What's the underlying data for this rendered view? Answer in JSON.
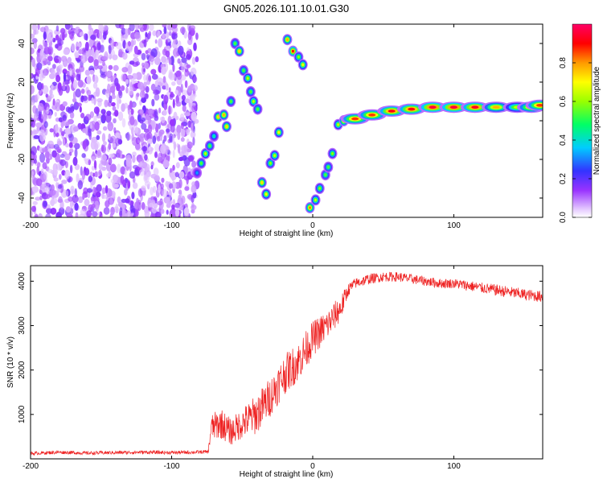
{
  "title": "GN05.2026.101.10.01.G30",
  "chart_data": [
    {
      "type": "heatmap",
      "title": "GN05.2026.101.10.01.G30",
      "xlabel": "Height of straight line (km)",
      "ylabel": "Frequency (Hz)",
      "xlim": [
        -200,
        163
      ],
      "ylim": [
        -50,
        50
      ],
      "xticks": [
        -200,
        -100,
        0,
        100
      ],
      "yticks": [
        -40,
        -20,
        0,
        20,
        40
      ],
      "colorbar": {
        "label": "Normalized spectral amplitude",
        "range": [
          0,
          1
        ],
        "ticks": [
          0,
          0.2,
          0.4,
          0.6,
          0.8
        ],
        "tick_labels": [
          "0.0",
          "0.2",
          "0.4",
          "0.6",
          "0.8"
        ],
        "colors": [
          "#ffffff",
          "#9933ff",
          "#3333ff",
          "#00ccff",
          "#00ff66",
          "#99ff00",
          "#ffff00",
          "#ff9900",
          "#ff0000",
          "#ff0066"
        ]
      },
      "noise_region": {
        "x_range": [
          -200,
          -82
        ],
        "y_range": [
          -50,
          50
        ]
      },
      "ridge": [
        {
          "x": -82,
          "y": -27,
          "a": 0.3
        },
        {
          "x": -79,
          "y": -22,
          "a": 0.5
        },
        {
          "x": -76,
          "y": -17,
          "a": 0.6
        },
        {
          "x": -73,
          "y": -13,
          "a": 0.5
        },
        {
          "x": -70,
          "y": -8,
          "a": 0.4
        },
        {
          "x": -67,
          "y": 2,
          "a": 0.7
        },
        {
          "x": -63,
          "y": 3,
          "a": 0.75
        },
        {
          "x": -61,
          "y": -3,
          "a": 0.7
        },
        {
          "x": -58,
          "y": 10,
          "a": 0.5
        },
        {
          "x": -55,
          "y": 40,
          "a": 0.5
        },
        {
          "x": -52,
          "y": 36,
          "a": 0.7
        },
        {
          "x": -49,
          "y": 26,
          "a": 0.5
        },
        {
          "x": -46,
          "y": 22,
          "a": 0.6
        },
        {
          "x": -44,
          "y": 15,
          "a": 0.5
        },
        {
          "x": -42,
          "y": 10,
          "a": 0.6
        },
        {
          "x": -39,
          "y": 6,
          "a": 0.5
        },
        {
          "x": -36,
          "y": -32,
          "a": 0.7
        },
        {
          "x": -33,
          "y": -38,
          "a": 0.65
        },
        {
          "x": -30,
          "y": -22,
          "a": 0.55
        },
        {
          "x": -27,
          "y": -18,
          "a": 0.6
        },
        {
          "x": -24,
          "y": -6,
          "a": 0.65
        },
        {
          "x": -18,
          "y": 42,
          "a": 0.75
        },
        {
          "x": -14,
          "y": 36,
          "a": 0.9
        },
        {
          "x": -10,
          "y": 33,
          "a": 0.55
        },
        {
          "x": -7,
          "y": 29,
          "a": 0.65
        },
        {
          "x": -2,
          "y": -45,
          "a": 0.8
        },
        {
          "x": 2,
          "y": -41,
          "a": 0.6
        },
        {
          "x": 5,
          "y": -35,
          "a": 0.55
        },
        {
          "x": 9,
          "y": -28,
          "a": 0.5
        },
        {
          "x": 11,
          "y": -24,
          "a": 0.5
        },
        {
          "x": 14,
          "y": -17,
          "a": 0.55
        },
        {
          "x": 18,
          "y": -2,
          "a": 0.6
        },
        {
          "x": 22,
          "y": 0,
          "a": 0.8
        },
        {
          "x": 30,
          "y": 1,
          "a": 0.85
        },
        {
          "x": 42,
          "y": 3,
          "a": 0.85
        },
        {
          "x": 56,
          "y": 5,
          "a": 0.9
        },
        {
          "x": 70,
          "y": 6,
          "a": 0.9
        },
        {
          "x": 85,
          "y": 7,
          "a": 0.95
        },
        {
          "x": 100,
          "y": 7,
          "a": 0.95
        },
        {
          "x": 115,
          "y": 7,
          "a": 0.92
        },
        {
          "x": 130,
          "y": 7,
          "a": 0.75
        },
        {
          "x": 145,
          "y": 7,
          "a": 0.6
        },
        {
          "x": 155,
          "y": 7,
          "a": 0.8
        },
        {
          "x": 161,
          "y": 8,
          "a": 0.85
        }
      ]
    },
    {
      "type": "line",
      "title": "",
      "xlabel": "Height of straight line (km)",
      "ylabel": "SNR (10 * v/v)",
      "xlim": [
        -200,
        163
      ],
      "ylim": [
        0,
        4350
      ],
      "xticks": [
        -200,
        -100,
        0,
        100
      ],
      "yticks": [
        1000,
        2000,
        3000,
        4000
      ],
      "series": [
        {
          "name": "SNR",
          "color": "#ee2222",
          "x": [
            -200,
            -180,
            -160,
            -140,
            -120,
            -100,
            -82,
            -74,
            -72,
            -65,
            -58,
            -50,
            -40,
            -30,
            -20,
            -10,
            0,
            10,
            20,
            25,
            30,
            40,
            50,
            60,
            70,
            80,
            90,
            100,
            110,
            120,
            130,
            140,
            150,
            163
          ],
          "y": [
            120,
            150,
            130,
            140,
            150,
            140,
            150,
            160,
            700,
            800,
            600,
            800,
            1000,
            1400,
            1900,
            2200,
            2700,
            3000,
            3400,
            3800,
            3950,
            4050,
            4100,
            4100,
            4050,
            4000,
            3950,
            3950,
            3900,
            3850,
            3800,
            3750,
            3700,
            3650
          ],
          "noise": [
            40,
            40,
            40,
            40,
            40,
            40,
            40,
            40,
            300,
            350,
            300,
            350,
            450,
            450,
            450,
            450,
            400,
            350,
            300,
            150,
            120,
            120,
            110,
            110,
            110,
            110,
            110,
            110,
            120,
            120,
            130,
            130,
            130,
            130
          ]
        }
      ]
    }
  ]
}
